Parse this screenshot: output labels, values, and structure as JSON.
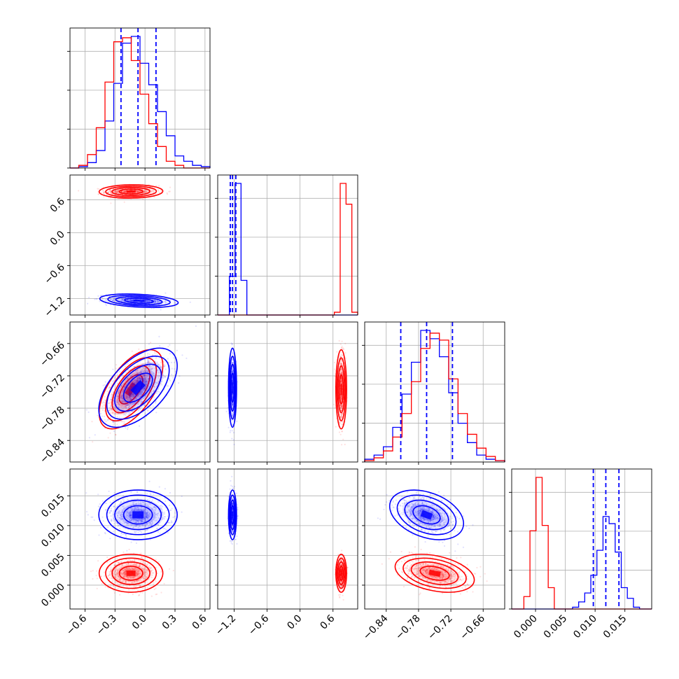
{
  "chart_data": {
    "type": "corner",
    "grid": true,
    "series": [
      {
        "color": "#0000ff"
      },
      {
        "color": "#ff0000"
      }
    ],
    "params": [
      {
        "ticks": [
          -0.6,
          -0.3,
          0.0,
          0.3,
          0.6
        ],
        "tick_labels": [
          "−0.6",
          "−0.3",
          "0.0",
          "0.3",
          "0.6"
        ],
        "range": [
          -0.75,
          0.65
        ],
        "quantiles": [
          -0.24,
          -0.07,
          0.11
        ],
        "hist": {
          "blue": [
            0,
            1,
            4,
            13,
            35,
            63,
            93,
            98,
            78,
            62,
            42,
            24,
            9,
            5,
            2,
            1
          ],
          "red": [
            0,
            2,
            10,
            30,
            64,
            94,
            97,
            80,
            55,
            33,
            16,
            5,
            2,
            0,
            0,
            0
          ]
        }
      },
      {
        "ticks": [
          -1.2,
          -0.6,
          0.0,
          0.6
        ],
        "tick_labels": [
          "−1.2",
          "−0.6",
          "0.0",
          "0.6"
        ],
        "range": [
          -1.5,
          1.05
        ],
        "quantiles": [
          -1.27,
          -1.23,
          -1.17
        ],
        "hist": {
          "blue": [
            0,
            0,
            28,
            95,
            25,
            0,
            0,
            0,
            0,
            0,
            0,
            0,
            0,
            0,
            0,
            0,
            0,
            0,
            0,
            0,
            0,
            0,
            0,
            0
          ],
          "red": [
            0,
            0,
            0,
            0,
            0,
            0,
            0,
            0,
            0,
            0,
            0,
            0,
            0,
            0,
            0,
            0,
            0,
            0,
            0,
            0,
            2,
            95,
            80,
            2
          ]
        }
      },
      {
        "ticks": [
          -0.84,
          -0.78,
          -0.72,
          -0.66
        ],
        "tick_labels": [
          "−0.84",
          "−0.78",
          "−0.72",
          "−0.66"
        ],
        "range": [
          -0.88,
          -0.62
        ],
        "quantiles": [
          -0.813,
          -0.765,
          -0.717
        ],
        "hist": {
          "blue": [
            2,
            5,
            11,
            25,
            49,
            72,
            95,
            89,
            76,
            50,
            28,
            14,
            5,
            2,
            1
          ],
          "red": [
            1,
            3,
            8,
            18,
            35,
            58,
            82,
            93,
            88,
            60,
            35,
            20,
            10,
            4,
            1
          ]
        }
      },
      {
        "ticks": [
          0.0,
          0.005,
          0.01,
          0.015
        ],
        "tick_labels": [
          "0.000",
          "0.005",
          "0.010",
          "0.015"
        ],
        "range": [
          -0.004,
          0.0195
        ],
        "quantiles": [
          0.0097,
          0.0118,
          0.014
        ],
        "hist": {
          "blue": [
            0,
            0,
            0,
            0,
            0,
            0,
            0,
            0,
            0,
            0,
            1,
            4,
            9,
            19,
            33,
            52,
            48,
            32,
            12,
            6,
            1,
            0,
            0
          ],
          "red": [
            0,
            0,
            7,
            44,
            74,
            47,
            12,
            0,
            0,
            0,
            0,
            0,
            0,
            0,
            0,
            0,
            0,
            0,
            0,
            0,
            0,
            0,
            0
          ]
        }
      }
    ],
    "clusters": [
      {
        "row": 1,
        "col": 0,
        "blue": {
          "mx": -0.06,
          "my": -1.24,
          "sx": 0.16,
          "sy": 0.05,
          "rho": -0.3
        },
        "red": {
          "mx": -0.14,
          "my": 0.75,
          "sx": 0.13,
          "sy": 0.05,
          "rho": 0.05
        }
      },
      {
        "row": 2,
        "col": 0,
        "blue": {
          "mx": -0.07,
          "my": -0.742,
          "sx": 0.16,
          "sy": 0.03,
          "rho": 0.55
        },
        "red": {
          "mx": -0.14,
          "my": -0.745,
          "sx": 0.13,
          "sy": 0.03,
          "rho": 0.6
        }
      },
      {
        "row": 2,
        "col": 1,
        "blue": {
          "mx": -1.23,
          "my": -0.742,
          "sx": 0.03,
          "sy": 0.03,
          "rho": 0.0
        },
        "red": {
          "mx": 0.75,
          "my": -0.745,
          "sx": 0.04,
          "sy": 0.03,
          "rho": 0.0
        }
      },
      {
        "row": 3,
        "col": 0,
        "blue": {
          "mx": -0.07,
          "my": 0.0118,
          "sx": 0.16,
          "sy": 0.0017,
          "rho": 0.0
        },
        "red": {
          "mx": -0.14,
          "my": 0.002,
          "sx": 0.13,
          "sy": 0.0013,
          "rho": 0.0
        }
      },
      {
        "row": 3,
        "col": 1,
        "blue": {
          "mx": -1.23,
          "my": 0.0118,
          "sx": 0.03,
          "sy": 0.0017,
          "rho": 0.0
        },
        "red": {
          "mx": 0.75,
          "my": 0.002,
          "sx": 0.04,
          "sy": 0.0013,
          "rho": 0.0
        }
      },
      {
        "row": 3,
        "col": 2,
        "blue": {
          "mx": -0.765,
          "my": 0.0118,
          "sx": 0.028,
          "sy": 0.0017,
          "rho": -0.35
        },
        "red": {
          "mx": -0.75,
          "my": 0.002,
          "sx": 0.03,
          "sy": 0.0013,
          "rho": -0.35
        }
      }
    ]
  }
}
